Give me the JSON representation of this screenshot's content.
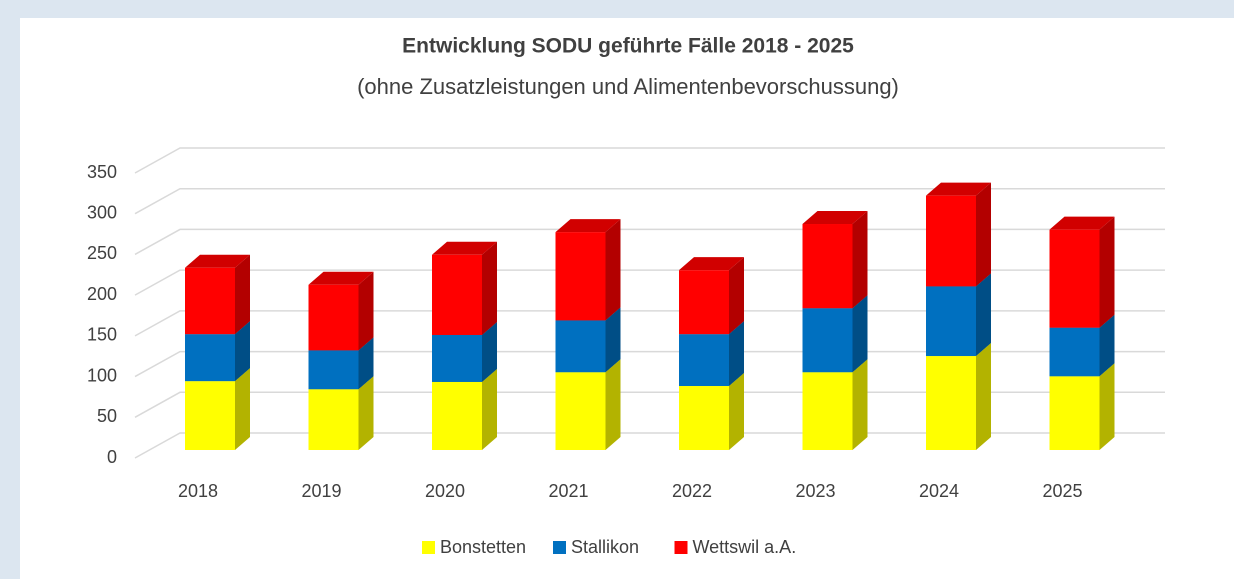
{
  "chart_data": {
    "type": "bar3d_stacked",
    "title": "Entwicklung SODU geführte Fälle 2018 - 2025",
    "subtitle": "(ohne Zusatzleistungen und Alimentenbevorschussung)",
    "categories": [
      "2018",
      "2019",
      "2020",
      "2021",
      "2022",
      "2023",
      "2024",
      "2025"
    ],
    "series": [
      {
        "name": "Bonstetten",
        "color": "#ffff00",
        "values": [
          85,
          75,
          84,
          96,
          79,
          96,
          116,
          91
        ]
      },
      {
        "name": "Stallikon",
        "color": "#0070c0",
        "values": [
          58,
          48,
          58,
          64,
          64,
          79,
          86,
          60
        ]
      },
      {
        "name": "Wettswil a.A.",
        "color": "#ff0000",
        "values": [
          82,
          81,
          99,
          109,
          79,
          104,
          112,
          121
        ]
      }
    ],
    "ylim": [
      0,
      350
    ],
    "yticks": [
      0,
      50,
      100,
      150,
      200,
      250,
      300,
      350
    ],
    "grid": true,
    "legend": "bottom"
  }
}
